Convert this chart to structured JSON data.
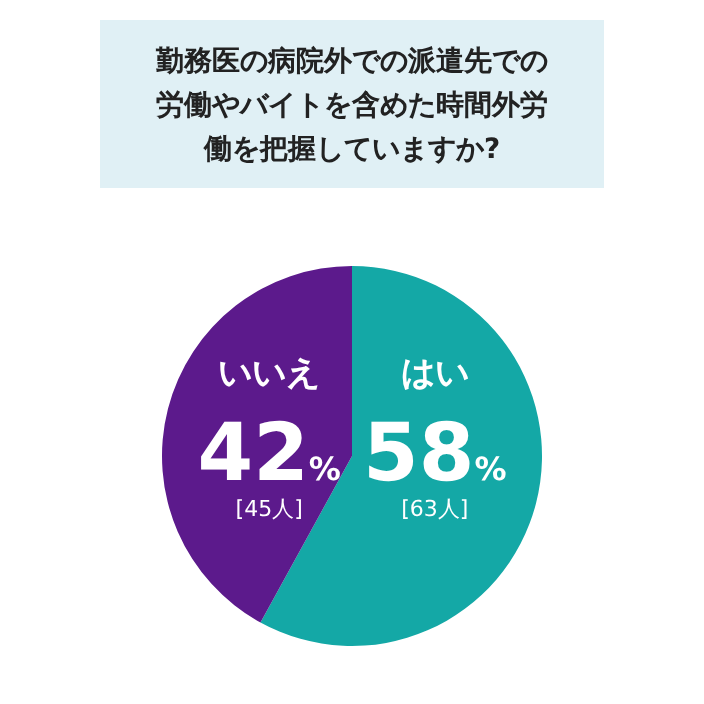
{
  "chart_data": {
    "type": "pie",
    "title": "勤務医の病院外での派遣先での労働やバイトを含めた時間外労働を把握していますか?",
    "categories": [
      "はい",
      "いいえ"
    ],
    "values": [
      58,
      42
    ],
    "colors": [
      "#14a8a6",
      "#5c1a8c"
    ],
    "value_labels": [
      "58%",
      "42%"
    ],
    "annotations": [
      "[63人]",
      "[45人]"
    ],
    "legend": false
  }
}
